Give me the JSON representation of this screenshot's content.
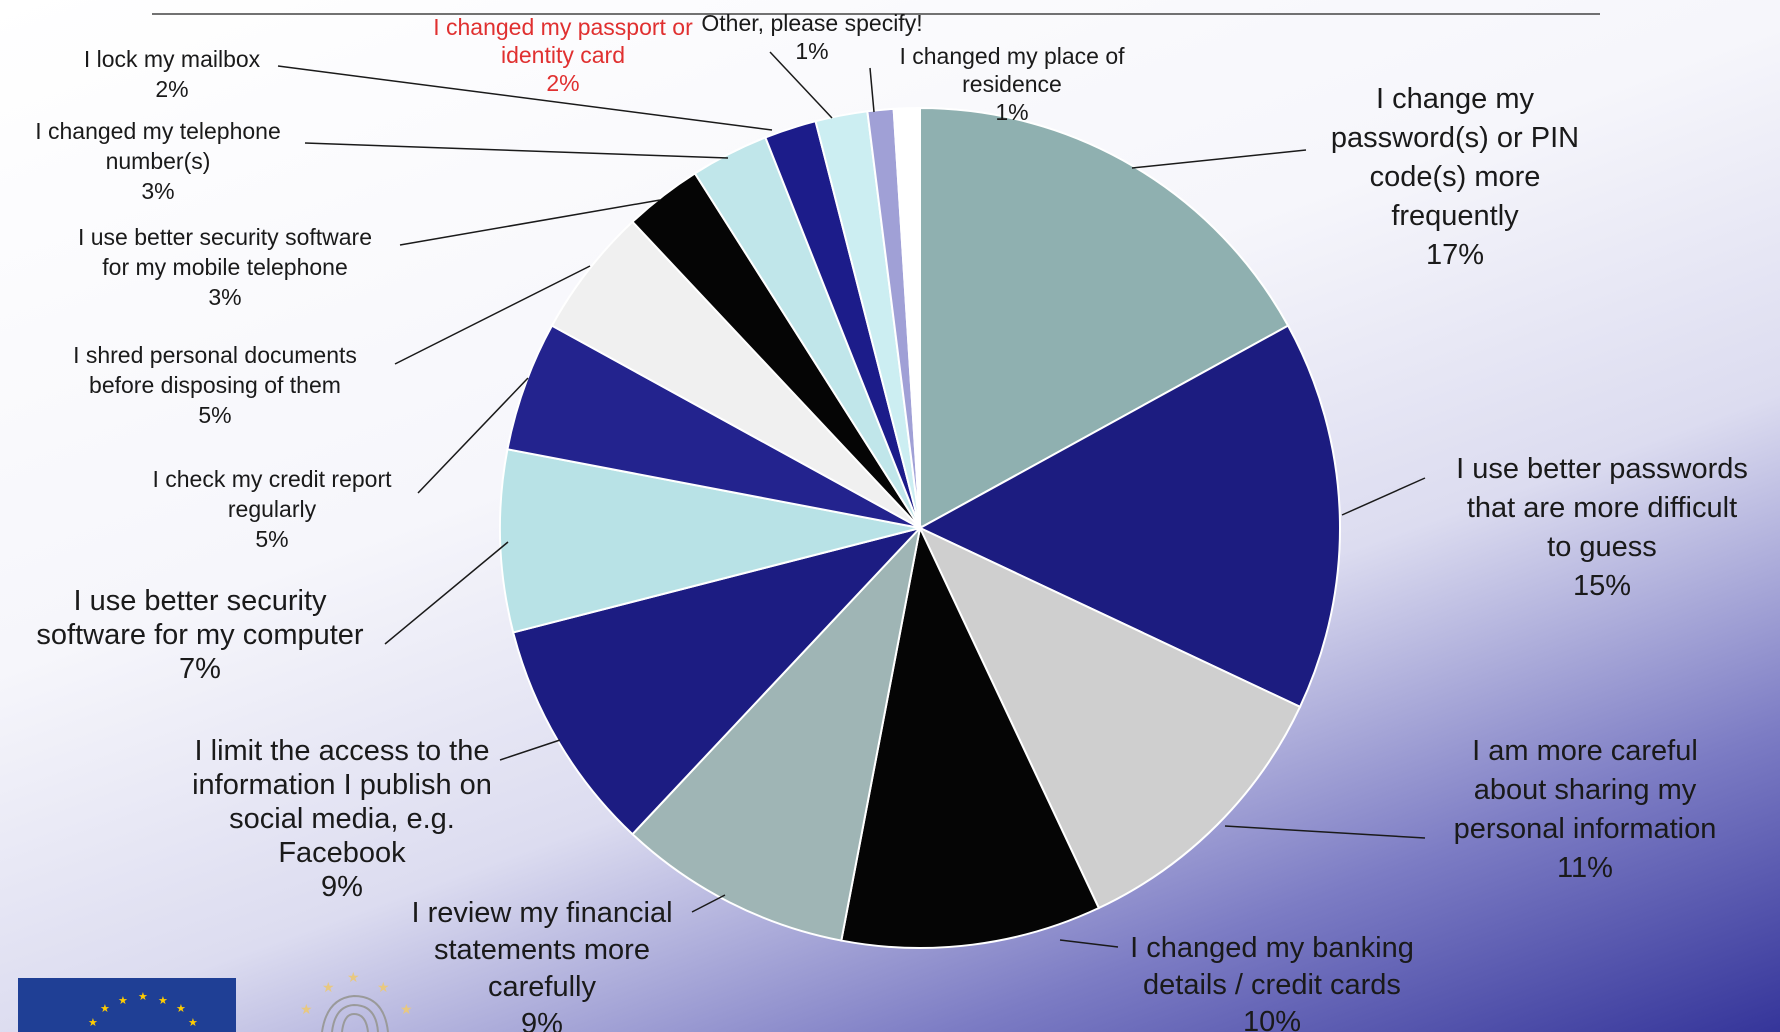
{
  "chart_data": {
    "type": "pie",
    "title": "",
    "slices": [
      {
        "label": [
          "I change my",
          "password(s) or PIN",
          "code(s) more",
          "frequently"
        ],
        "pct_label": "17%",
        "value": 17,
        "color": "#8fb0b0"
      },
      {
        "label": [
          "I use better passwords",
          "that are more difficult",
          "to guess"
        ],
        "pct_label": "15%",
        "value": 15,
        "color": "#1c1c80"
      },
      {
        "label": [
          "I am more careful",
          "about sharing my",
          "personal information"
        ],
        "pct_label": "11%",
        "value": 11,
        "color": "#cfcfcf"
      },
      {
        "label": [
          "I changed my banking",
          "details / credit cards"
        ],
        "pct_label": "10%",
        "value": 10,
        "color": "#050505"
      },
      {
        "label": [
          "I review my financial",
          "statements more",
          "carefully"
        ],
        "pct_label": "9%",
        "value": 9,
        "color": "#9fb5b5"
      },
      {
        "label": [
          "I limit the access to the",
          "information I publish on",
          "social media, e.g.",
          "Facebook"
        ],
        "pct_label": "9%",
        "value": 9,
        "color": "#1c1c82"
      },
      {
        "label": [
          "I use better security",
          "software for my computer"
        ],
        "pct_label": "7%",
        "value": 7,
        "color": "#b8e2e6"
      },
      {
        "label": [
          "I check my credit report",
          "regularly"
        ],
        "pct_label": "5%",
        "value": 5,
        "color": "#23238e"
      },
      {
        "label": [
          "I shred personal documents",
          "before disposing of them"
        ],
        "pct_label": "5%",
        "value": 5,
        "color": "#f0f0f0"
      },
      {
        "label": [
          "I use better security software",
          "for my mobile telephone"
        ],
        "pct_label": "3%",
        "value": 3,
        "color": "#050505"
      },
      {
        "label": [
          "I changed my telephone",
          "number(s)"
        ],
        "pct_label": "3%",
        "value": 3,
        "color": "#c0e6ea"
      },
      {
        "label": [
          "I lock my mailbox"
        ],
        "pct_label": "2%",
        "value": 2,
        "color": "#1c1c8a"
      },
      {
        "label": [
          "I changed my passport or",
          "identity card"
        ],
        "pct_label": "2%",
        "value": 2,
        "color": "#cceef2",
        "label_color": "#e03030"
      },
      {
        "label": [
          "Other, please specify!"
        ],
        "pct_label": "1%",
        "value": 1,
        "color": "#a0a0d6"
      },
      {
        "label": [
          "I changed my place of",
          "residence"
        ],
        "pct_label": "1%",
        "value": 1,
        "color": "#ffffff"
      }
    ]
  }
}
